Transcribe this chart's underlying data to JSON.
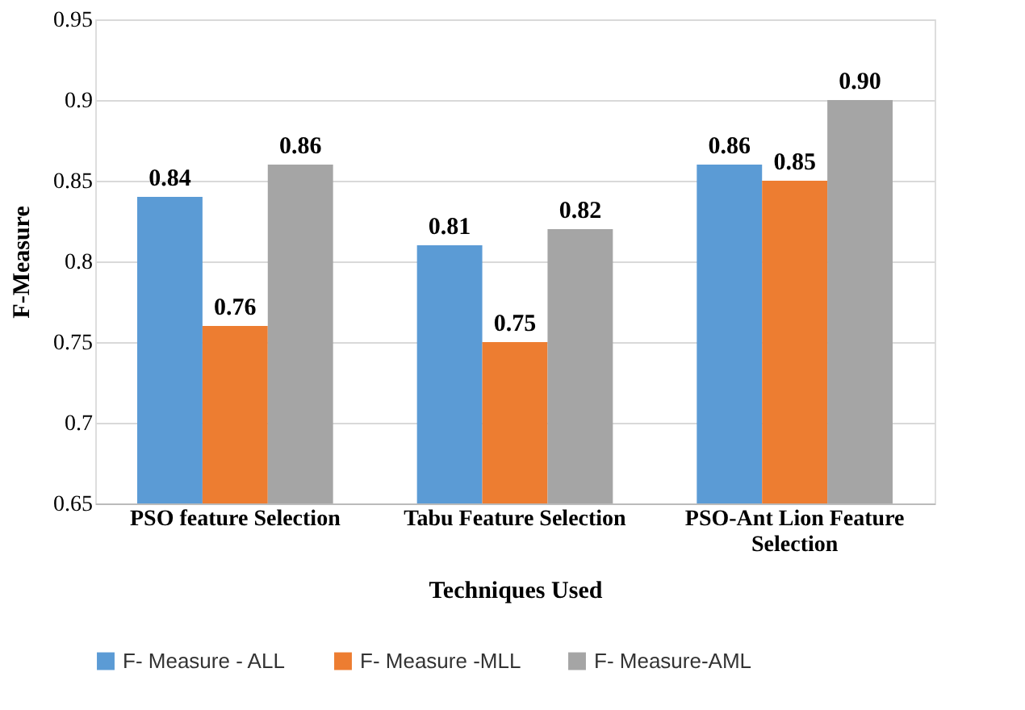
{
  "chart_data": {
    "type": "bar",
    "xlabel": "Techniques Used",
    "ylabel": "F-Measure",
    "categories": [
      "PSO feature Selection",
      "Tabu Feature Selection",
      "PSO-Ant Lion Feature Selection"
    ],
    "series": [
      {
        "name": "F- Measure - ALL",
        "color": "#5b9bd5",
        "values": [
          0.84,
          0.81,
          0.86
        ],
        "value_labels": [
          "0.84",
          "0.81",
          "0.86"
        ]
      },
      {
        "name": "F- Measure -MLL",
        "color": "#ed7d31",
        "values": [
          0.76,
          0.75,
          0.85
        ],
        "value_labels": [
          "0.76",
          "0.75",
          "0.85"
        ]
      },
      {
        "name": "F- Measure-AML",
        "color": "#a5a5a5",
        "values": [
          0.86,
          0.82,
          0.9
        ],
        "value_labels": [
          "0.86",
          "0.82",
          "0.90"
        ]
      }
    ],
    "ylim": [
      0.65,
      0.95
    ],
    "yticks": [
      0.65,
      0.7,
      0.75,
      0.8,
      0.85,
      0.9,
      0.95
    ],
    "grid": "y",
    "legend": "bottom"
  }
}
